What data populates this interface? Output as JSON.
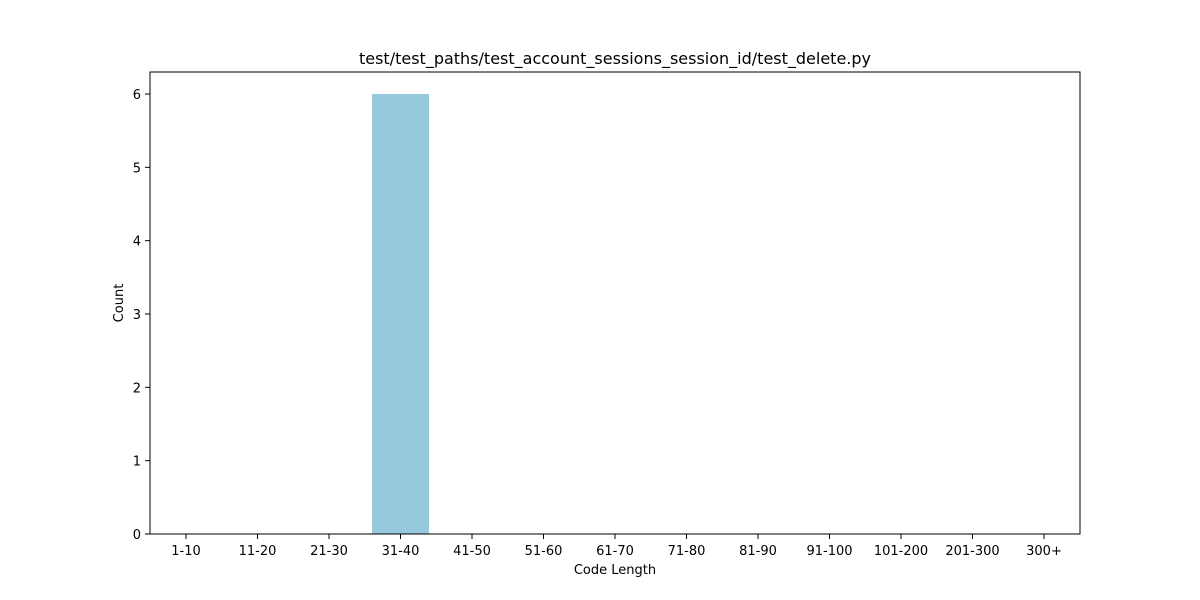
{
  "chart_data": {
    "type": "bar",
    "title": "test/test_paths/test_account_sessions_session_id/test_delete.py",
    "xlabel": "Code Length",
    "ylabel": "Count",
    "categories": [
      "1-10",
      "11-20",
      "21-30",
      "31-40",
      "41-50",
      "51-60",
      "61-70",
      "71-80",
      "81-90",
      "91-100",
      "101-200",
      "201-300",
      "300+"
    ],
    "values": [
      0,
      0,
      0,
      6,
      0,
      0,
      0,
      0,
      0,
      0,
      0,
      0,
      0
    ],
    "ylim": [
      0,
      6.3
    ],
    "yticks": [
      0,
      1,
      2,
      3,
      4,
      5,
      6
    ],
    "bar_color": "#96c9de",
    "grid": false
  }
}
